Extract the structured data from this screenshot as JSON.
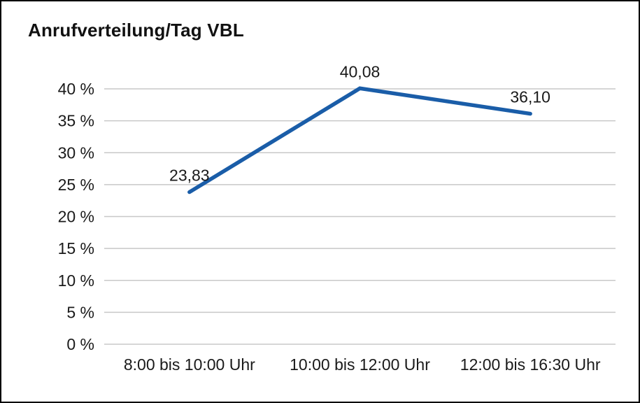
{
  "chart_data": {
    "type": "line",
    "title": "Anrufverteilung/Tag VBL",
    "categories": [
      "8:00 bis 10:00 Uhr",
      "10:00 bis 12:00 Uhr",
      "12:00 bis 16:30 Uhr"
    ],
    "values": [
      23.83,
      40.08,
      36.1
    ],
    "value_labels": [
      "23,83",
      "40,08",
      "36,10"
    ],
    "yticks": [
      0,
      5,
      10,
      15,
      20,
      25,
      30,
      35,
      40
    ],
    "ytick_labels": [
      "0 %",
      "5 %",
      "10 %",
      "15 %",
      "20 %",
      "25 %",
      "30 %",
      "35 %",
      "40 %"
    ],
    "ylim": [
      0,
      40
    ],
    "xlabel": "",
    "ylabel": "",
    "grid": "horizontal",
    "legend": "none",
    "line_color": "#1a5da8",
    "grid_color": "#c8c8c8",
    "label_color": "#1a1a1a"
  }
}
